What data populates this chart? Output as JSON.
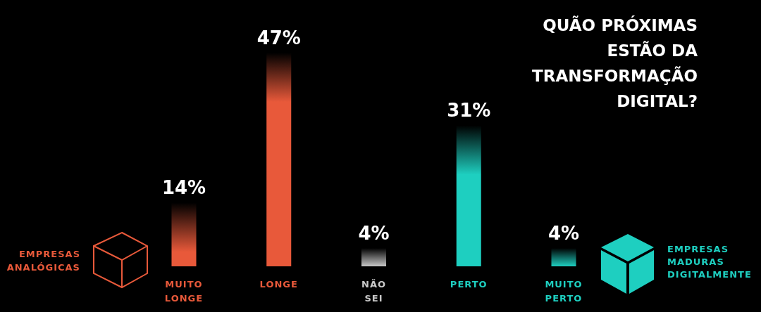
{
  "chart_data": {
    "type": "bar",
    "title": "QUÃO PRÓXIMAS ESTÃO DA TRANSFORMAÇÃO DIGITAL?",
    "categories": [
      "MUITO LONGE",
      "LONGE",
      "NÃO SEI",
      "PERTO",
      "MUITO PERTO"
    ],
    "values": [
      14,
      47,
      4,
      31,
      4
    ],
    "colors": [
      "#e8593a",
      "#e8593a",
      "#c8c8c8",
      "#1ecfc0",
      "#1ecfc0"
    ],
    "value_labels": [
      "14%",
      "47%",
      "4%",
      "31%",
      "4%"
    ],
    "annotations": [
      "EMPRESAS ANALÓGICAS",
      "EMPRESAS MADURAS DIGITALMENTE"
    ]
  }
}
